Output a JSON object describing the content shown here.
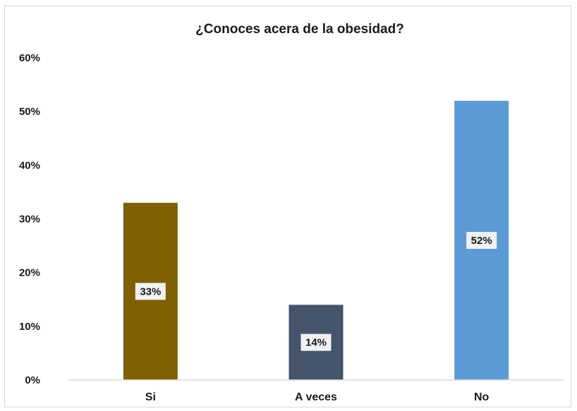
{
  "chart_data": {
    "type": "bar",
    "title": "¿Conoces acera de la obesidad?",
    "categories": [
      "Si",
      "A veces",
      "No"
    ],
    "values": [
      33,
      14,
      52
    ],
    "value_labels": [
      "33%",
      "14%",
      "52%"
    ],
    "ylim": [
      0,
      60
    ],
    "yticks": [
      0,
      10,
      20,
      30,
      40,
      50,
      60
    ],
    "ytick_labels": [
      "0%",
      "10%",
      "20%",
      "30%",
      "40%",
      "50%",
      "60%"
    ],
    "bar_colors": [
      "#7f6000",
      "#44546a",
      "#5b9bd5"
    ],
    "grid": false,
    "legend": "none"
  }
}
